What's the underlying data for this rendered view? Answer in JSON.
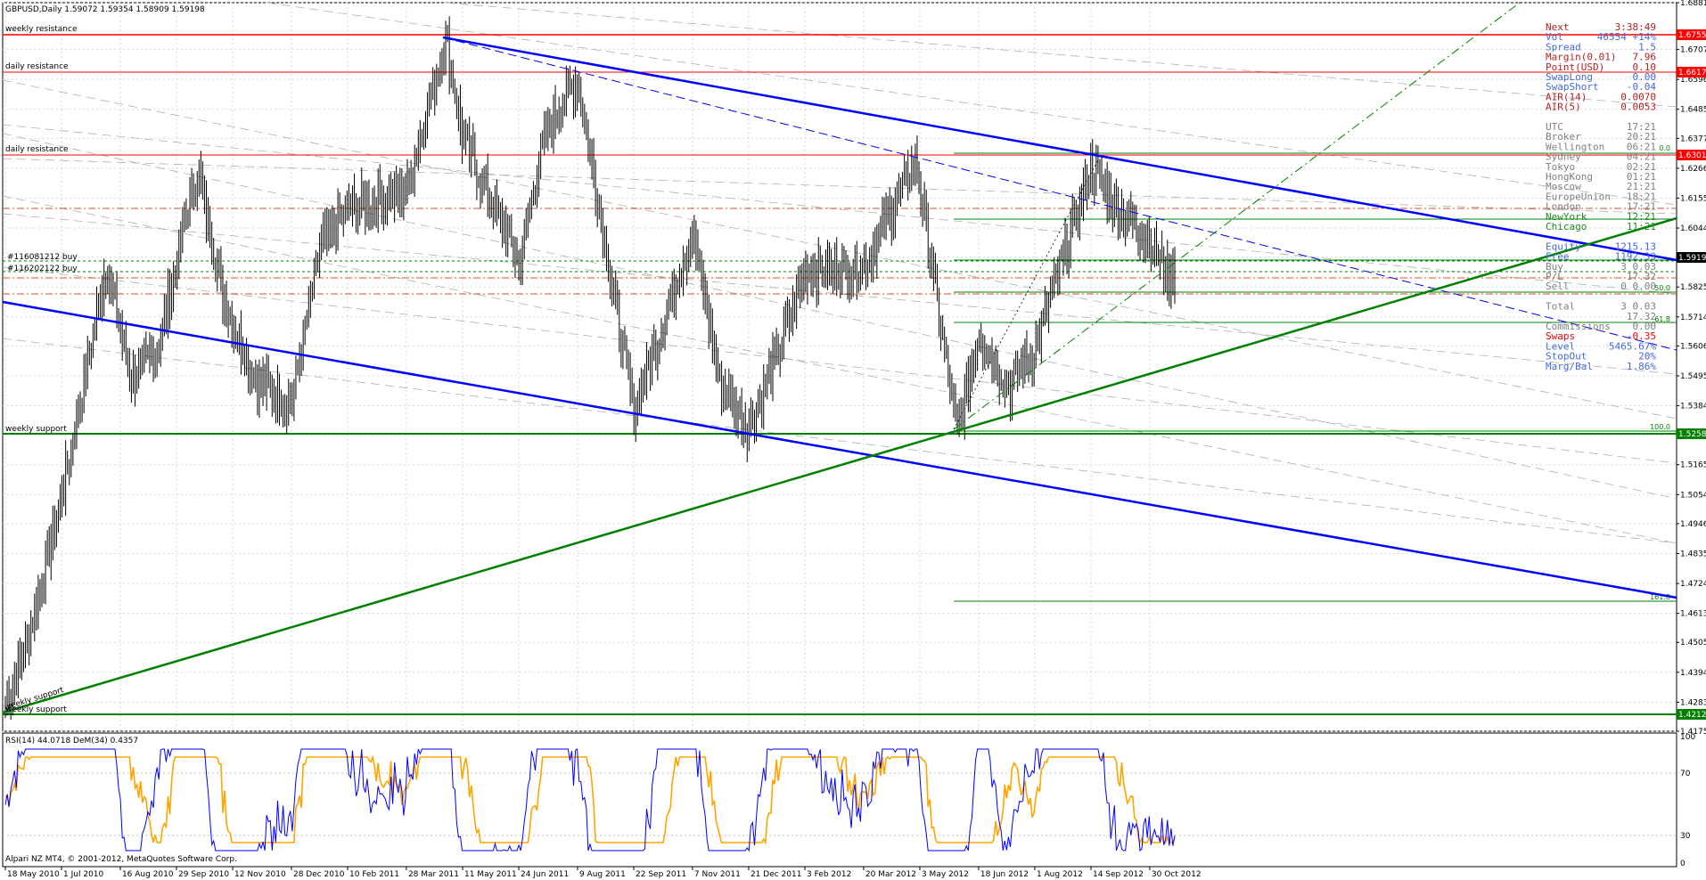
{
  "header": {
    "title": "GBPUSD,Daily  1.59072 1.59354 1.58909 1.59198",
    "copyright": "Alpari NZ MT4, © 2001-2012, MetaQuotes Software Corp."
  },
  "indicator": {
    "title": "RSI(14) 44.0718  DeM(34) 0.4357",
    "levels": [
      "100",
      "70",
      "30",
      "0"
    ]
  },
  "colors": {
    "resistance": "#ff0000",
    "support": "#008000",
    "channel": "#0000ff",
    "candles": "#000000",
    "rsi": "#0000ff",
    "dem": "#ffa500",
    "badge_red": "#ff0000",
    "badge_green": "#008000",
    "badge_black": "#000000"
  },
  "level_labels": {
    "weekly_resistance": "weekly resistance",
    "daily_resistance_1": "daily resistance",
    "daily_resistance_2": "daily resistance",
    "weekly_support_1": "weekly support",
    "weekly_support_2": "weekly support",
    "weekly_support_diag": "weekly support",
    "order_buy_1": "#116081212 buy",
    "order_buy_2": "#116202122 buy",
    "fib_00": "0.0",
    "fib_382": "38.2",
    "fib_50": "50.0",
    "fib_618": "61.8",
    "fib_100": "100.0",
    "fib_1618": "161.8"
  },
  "badges": {
    "b1": "1.67559",
    "b2": "1.66179",
    "b3": "1.63017",
    "b4": "1.59198",
    "b5": "1.52587",
    "b6": "1.42125"
  },
  "info_panel": [
    {
      "label": "Next",
      "value": "3:38:49",
      "color": "#b22222"
    },
    {
      "label": "Vol",
      "value": "46554 +14%",
      "color": "#4169e1"
    },
    {
      "label": "Spread",
      "value": "1.5",
      "color": "#4169e1"
    },
    {
      "label": "Margin(0.01)",
      "value": "7.96",
      "color": "#b22222"
    },
    {
      "label": "Point(USD)",
      "value": "0.10",
      "color": "#b22222"
    },
    {
      "label": "SwapLong",
      "value": "0.00",
      "color": "#4169e1"
    },
    {
      "label": "SwapShort",
      "value": "-0.04",
      "color": "#4169e1"
    },
    {
      "label": "AIR(14)",
      "value": "0.0070",
      "color": "#b22222"
    },
    {
      "label": "AIR(5)",
      "value": "0.0053",
      "color": "#b22222"
    },
    {
      "label": "",
      "value": "",
      "color": "#808080"
    },
    {
      "label": "UTC",
      "value": "17:21",
      "color": "#808080"
    },
    {
      "label": "Broker",
      "value": "20:21",
      "color": "#808080"
    },
    {
      "label": "Wellington",
      "value": "06:21",
      "color": "#808080"
    },
    {
      "label": "Sydney",
      "value": "04:21",
      "color": "#808080"
    },
    {
      "label": "Tokyo",
      "value": "02:21",
      "color": "#808080"
    },
    {
      "label": "HongKong",
      "value": "01:21",
      "color": "#808080"
    },
    {
      "label": "Moscow",
      "value": "21:21",
      "color": "#808080"
    },
    {
      "label": "EuropeUnion",
      "value": "18:21",
      "color": "#808080"
    },
    {
      "label": "London",
      "value": "17:21",
      "color": "#808080"
    },
    {
      "label": "NewYork",
      "value": "12:21",
      "color": "#228b22"
    },
    {
      "label": "Chicago",
      "value": "11:21",
      "color": "#228b22"
    },
    {
      "label": "",
      "value": "",
      "color": "#808080"
    },
    {
      "label": "Equity",
      "value": "1215.13",
      "color": "#4169e1"
    },
    {
      "label": "Free",
      "value": "1192.33",
      "color": "#4169e1"
    },
    {
      "label": "Buy",
      "value": "3 0.03",
      "color": "#808080"
    },
    {
      "label": "P/L",
      "value": "17.32",
      "color": "#808080"
    },
    {
      "label": "Sell",
      "value": "0 0.00",
      "color": "#808080"
    },
    {
      "label": "",
      "value": "",
      "color": "#808080"
    },
    {
      "label": "Total",
      "value": "3 0.03",
      "color": "#808080"
    },
    {
      "label": "",
      "value": "17.32",
      "color": "#808080"
    },
    {
      "label": "Commissions",
      "value": "0.00",
      "color": "#808080"
    },
    {
      "label": "Swaps",
      "value": "-0.35",
      "color": "#ff0000"
    },
    {
      "label": "Level",
      "value": "5465.67%",
      "color": "#4169e1"
    },
    {
      "label": "StopOut",
      "value": "20%",
      "color": "#4169e1"
    },
    {
      "label": "Marg/Bal",
      "value": "1.86%",
      "color": "#4169e1"
    }
  ],
  "chart_data": {
    "type": "candlestick",
    "symbol": "GBPUSD",
    "timeframe": "Daily",
    "ohlc_last": {
      "open": 1.59072,
      "high": 1.59354,
      "low": 1.58909,
      "close": 1.59198
    },
    "ylim": [
      1.4175,
      1.6881
    ],
    "y_ticks": [
      "1.68810",
      "1.67070",
      "1.65960",
      "1.64850",
      "1.63770",
      "1.62660",
      "1.61550",
      "1.60440",
      "1.59360",
      "1.58250",
      "1.57140",
      "1.56060",
      "1.54950",
      "1.53840",
      "1.52760",
      "1.51650",
      "1.50540",
      "1.49460",
      "1.48350",
      "1.47240",
      "1.46130",
      "1.45050",
      "1.43940",
      "1.42830",
      "1.41750"
    ],
    "x_ticks": [
      "18 May 2010",
      "1 Jul 2010",
      "16 Aug 2010",
      "29 Sep 2010",
      "12 Nov 2010",
      "28 Dec 2010",
      "10 Feb 2011",
      "28 Mar 2011",
      "11 May 2011",
      "24 Jun 2011",
      "9 Aug 2011",
      "22 Sep 2011",
      "7 Nov 2011",
      "21 Dec 2011",
      "3 Feb 2012",
      "20 Mar 2012",
      "3 May 2012",
      "18 Jun 2012",
      "1 Aug 2012",
      "14 Sep 2012",
      "30 Oct 2012"
    ],
    "price_path": [
      [
        "18 May 2010",
        1.428
      ],
      [
        "1 Jun 2010",
        1.445
      ],
      [
        "1 Jul 2010",
        1.505
      ],
      [
        "5 Aug 2010",
        1.59
      ],
      [
        "25 Aug 2010",
        1.548
      ],
      [
        "15 Sep 2010",
        1.56
      ],
      [
        "15 Oct 2010",
        1.627
      ],
      [
        "5 Nov 2010",
        1.578
      ],
      [
        "30 Nov 2010",
        1.548
      ],
      [
        "28 Dec 2010",
        1.54
      ],
      [
        "20 Jan 2011",
        1.598
      ],
      [
        "10 Feb 2011",
        1.612
      ],
      [
        "28 Mar 2011",
        1.618
      ],
      [
        "28 Apr 2011",
        1.675
      ],
      [
        "11 May 2011",
        1.638
      ],
      [
        "24 Jun 2011",
        1.592
      ],
      [
        "15 Jul 2011",
        1.64
      ],
      [
        "9 Aug 2011",
        1.66
      ],
      [
        "22 Sep 2011",
        1.536
      ],
      [
        "7 Nov 2011",
        1.604
      ],
      [
        "28 Nov 2011",
        1.548
      ],
      [
        "21 Dec 2011",
        1.53
      ],
      [
        "10 Jan 2012",
        1.555
      ],
      [
        "3 Feb 2012",
        1.588
      ],
      [
        "20 Mar 2012",
        1.59
      ],
      [
        "30 Apr 2012",
        1.63
      ],
      [
        "3 May 2012",
        1.62
      ],
      [
        "1 Jun 2012",
        1.528
      ],
      [
        "18 Jun 2012",
        1.565
      ],
      [
        "12 Jul 2012",
        1.545
      ],
      [
        "1 Aug 2012",
        1.56
      ],
      [
        "14 Sep 2012",
        1.627
      ],
      [
        "5 Oct 2012",
        1.612
      ],
      [
        "30 Oct 2012",
        1.6
      ],
      [
        "14 Nov 2012",
        1.586
      ],
      [
        "20 Nov 2012",
        1.592
      ]
    ],
    "horizontal_levels": [
      {
        "price": 1.67559,
        "kind": "weekly resistance"
      },
      {
        "price": 1.66179,
        "kind": "daily resistance"
      },
      {
        "price": 1.63017,
        "kind": "daily resistance"
      },
      {
        "price": 1.52587,
        "kind": "weekly support"
      },
      {
        "price": 1.42125,
        "kind": "weekly support"
      }
    ],
    "rsi": {
      "period": 14,
      "value": 44.0718,
      "ylim": [
        0,
        100
      ],
      "levels": [
        30,
        70
      ]
    },
    "demarker": {
      "period": 34,
      "value": 0.4357
    }
  }
}
